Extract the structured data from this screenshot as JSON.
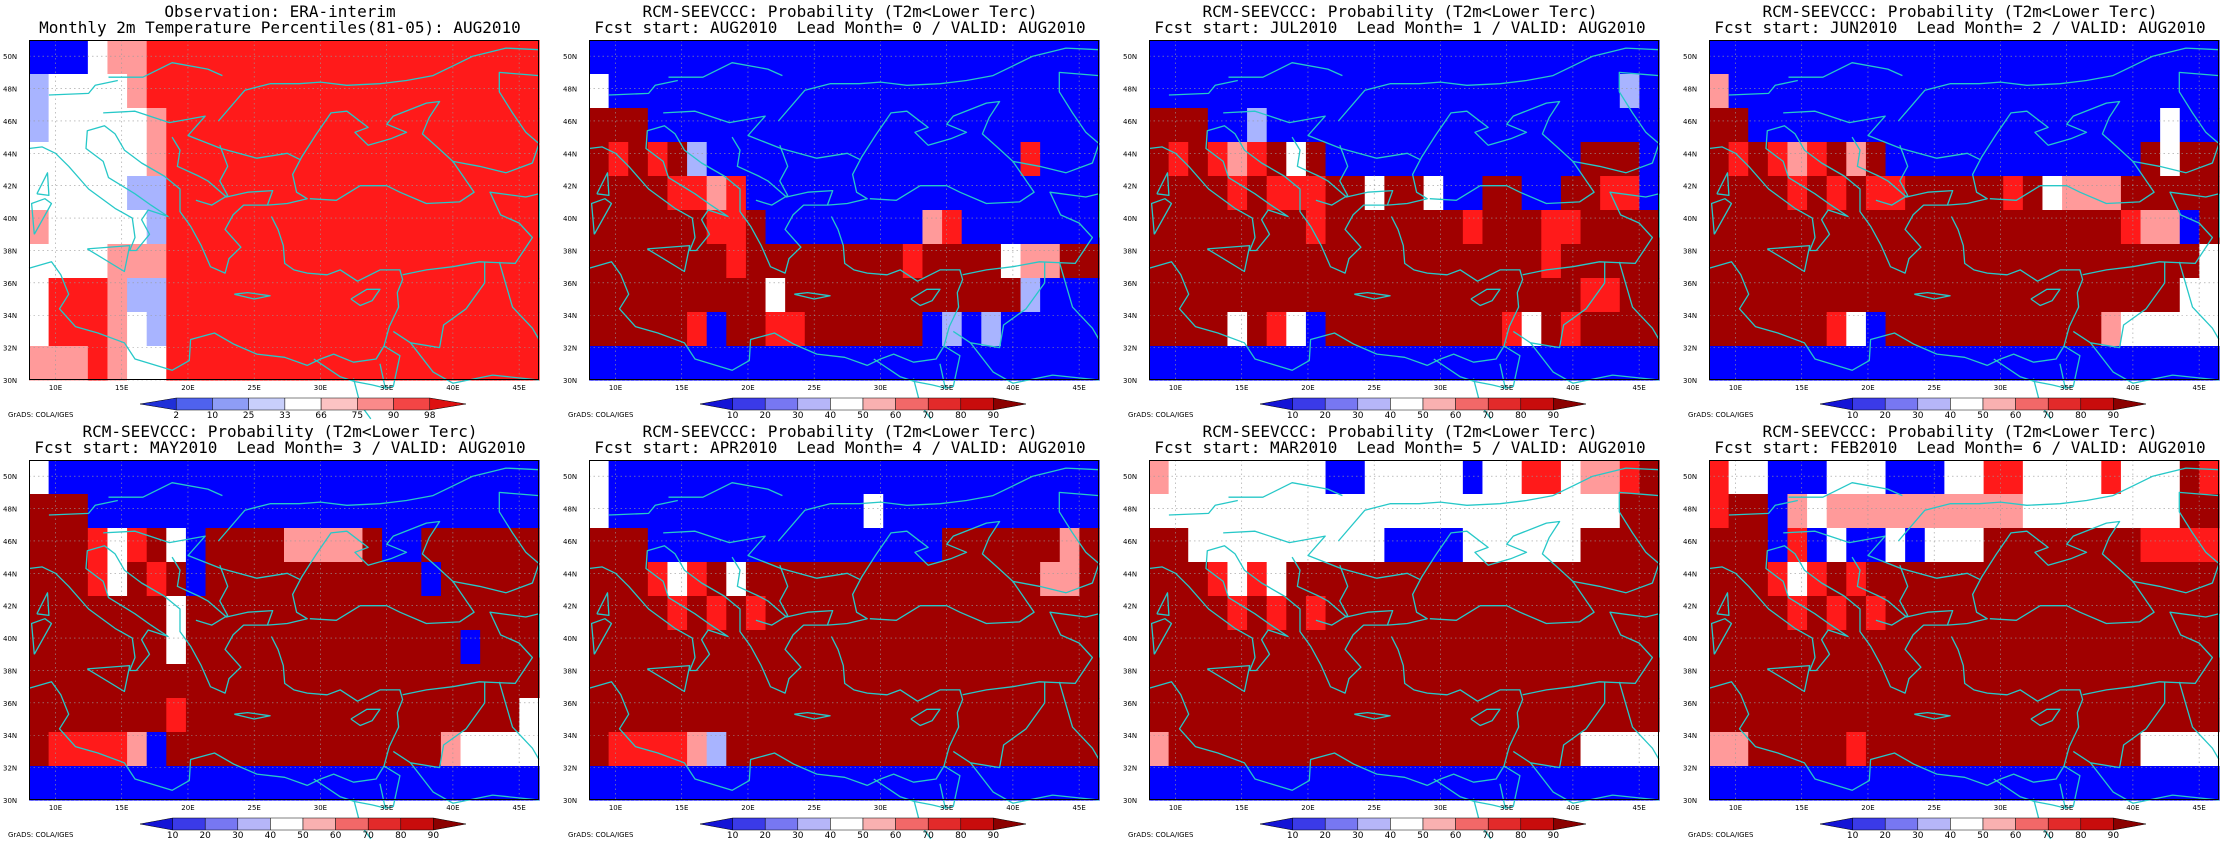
{
  "panels": [
    {
      "title1": "Observation: ERA-interim",
      "title2": "Monthly 2m Temperature Percentiles(81-05): AUG2010",
      "legend": "percentile",
      "grid": [
        "BBBWPPRRRRRRRRRRRRRRRRRRRR",
        "LWWWWPRRRRRRRRRRRRRRRRRRRR",
        "LWWWWWPRRRRRRRRRRRRRRRRRRR",
        "WWWWWWPRRRRRRRRRRRRRRRRRRR",
        "WWWWWLLRRRRRRRRRRRRRRRRRRR",
        "PWWWWWLRRRRRRRRRRRRRRRRRRR",
        "WWWWPPPRRRRRRRRRRRRRRRRRRR",
        "WRRRPLLRRRRRRRRRRRRRRRRRRR",
        "WRRRPWLRRRRRRRRRRRRRRRRRRR",
        "PPPRPWWRRRRRRRRRRRRRRRRRRR"
      ]
    },
    {
      "title1": "RCM-SEEVCCC: Probability (T2m<Lower Terc)",
      "title2": "Fcst start: AUG2010  Lead Month= 0 / VALID: AUG2010",
      "legend": "probability",
      "grid": [
        "BBBBBBBBBBBBBBBBBBBBBBBBBB",
        "WBBBBBBBBBBBBBBBBBBBBBBBBB",
        "DDDBBBBBBBBBBBBBBBBBBBBBBB",
        "DRDRDLBBBBBBBBBBBBBBBBRBBB",
        "DDDDRRPRBBBBBBBBBBBBBBBBBB",
        "DDDDDDRRDBBBBBBBBPRBBBBBBB",
        "DDDDDDDRDDDDDDDDRDDDDWPPDD",
        "DDDDDDDDDWDDDDDDDDDDDDLBBB",
        "DDDDDRBDDRRDDDDDDBLBLBBBBB",
        "BBBBBBBBBBBBBBBBBBBBBBBBBB"
      ]
    },
    {
      "title1": "RCM-SEEVCCC: Probability (T2m<Lower Terc)",
      "title2": "Fcst start: JUL2010  Lead Month= 1 / VALID: AUG2010",
      "legend": "probability",
      "grid": [
        "BBBBBBBBBBBBBBBBBBBBBBBBBB",
        "BBBBBBBBBBBBBBBBBBBBBBBBLB",
        "DDDBBLBBBBBBBBBBBBBBBBBBBB",
        "DRDRPRDWDBBBBBBBBBBBBBDDDB",
        "DDDDRDRRRDDWDDWBBDDBBDDRRB",
        "DDDDDDDDRDDDDDDDRDDDRRDDDD",
        "DDDDDDDDDDDDDDDDDDDDRDDDDD",
        "DDDDDDDDDDDDDDDDDDDDDDRRDD",
        "DDDDWDRWBDDDDDDDDDRWDRDDDD",
        "BBBBBBBBBBBBBBBBBBBBBBBBBB"
      ]
    },
    {
      "title1": "RCM-SEEVCCC: Probability (T2m<Lower Terc)",
      "title2": "Fcst start: JUN2010  Lead Month= 2 / VALID: AUG2010",
      "legend": "probability",
      "grid": [
        "BBBBBBBBBBBBBBBBBBBBBBBBBB",
        "PBBBBBBBBBBBBBBBBBBBBBBBBB",
        "DDBBBBBBBBBBBBBBBBBBBBBWBB",
        "DRDRPRDPDBBBBBBBBBBBBBDWDD",
        "DDDDRDRDRRDDDDDRDWPPPDDDDD",
        "DDDDDDDDDDDDDDDDDDDDDRPPBD",
        "DDDDDDDDDDDDDDDDDDDDDDDDDW",
        "DDDDDDDDDDDDDDDDDDDDDDDDWW",
        "DDDDDDRWBDDDDDDDDDDDPWWWWW",
        "BBBBBBBBBBBBBBBBBBBBBBBBBB"
      ]
    },
    {
      "title1": "RCM-SEEVCCC: Probability (T2m<Lower Terc)",
      "title2": "Fcst start: MAY2010  Lead Month= 3 / VALID: AUG2010",
      "legend": "probability",
      "grid": [
        "WBBBBBBBBBBBBBBBBBBBBBBBBB",
        "DDDBBBBBBBBBBBBBBBBBBBBBBB",
        "DDDRWRDWBDDDDPPPPDBBDDDDDD",
        "DDDRWDRDBDDDDDDDDDDDBDDDDD",
        "DDDDDDDWDDDDDDDDDDDDDDDDDD",
        "DDDDDDDWDDDDDDDDDDDDDDBDDD",
        "DDDDDDDDDDDDDDDDDDDDDDDDDD",
        "DDDDDDDRDDDDDDDDDDDDDDDDDW",
        "DRRRRPBDDDDDDDDDDDDDDPWWWW",
        "BBBBBBBBBBBBBBBBBBBBBBBBBB"
      ]
    },
    {
      "title1": "RCM-SEEVCCC: Probability (T2m<Lower Terc)",
      "title2": "Fcst start: APR2010  Lead Month= 4 / VALID: AUG2010",
      "legend": "probability",
      "grid": [
        "WBBBBBBBBBBBBBBBBBBBBBBBBB",
        "WBBBBBBBBBBBBBWBBBBBBBBBBB",
        "DDDBBBBBBBBBBBBBBBDDDDDDPD",
        "DDDRWRDWDDDDDDDDDDDDDDDPPD",
        "DDDDRDRDRDDDDDDDDDDDDDDDDD",
        "DDDDDDDDDDDDDDDDDDDDDDDDDD",
        "DDDDDDDDDDDDDDDDDDDDDDDDDD",
        "DDDDDDDDDDDDDDDDDDDDDDDDDD",
        "DRRRRPLDDDDDDDDDDDDDDDDDDD",
        "BBBBBBBBBBBBBBBBBBBBBBBBBB"
      ]
    },
    {
      "title1": "RCM-SEEVCCC: Probability (T2m<Lower Terc)",
      "title2": "Fcst start: MAR2010  Lead Month= 5 / VALID: AUG2010",
      "legend": "probability",
      "grid": [
        "PWWWWWWWWBBWWWWWBWWRRWPPRD",
        "WWWWWWWWWWWWWWWWWWWWWWWWDD",
        "DDWWWWWWWWWWBBBBWWWWWWDDDD",
        "DDDRWRWDDDDDDDDDDDDDDDDDDD",
        "DDDDRDRDRDDDDDDDDDDDDDDDDD",
        "DDDDDDDDDDDDDDDDDDDDDDDDDD",
        "DDDDDDDDDDDDDDDDDDDDDDDDDD",
        "DDDDDDDDDDDDDDDDDDDDDDDDDD",
        "PDDDDDDDDDDDDDDDDDDDDDWWWW",
        "BBBBBBBBBBBBBBBBBBBBBBBBBB"
      ]
    },
    {
      "title1": "RCM-SEEVCCC: Probability (T2m<Lower Terc)",
      "title2": "Fcst start: FEB2010  Lead Month= 6 / VALID: AUG2010",
      "legend": "probability",
      "grid": [
        "RWWBBBWWWBBBWWRRWWWWRWWWDR",
        "RDDBPWPPPPPPPPPPWWWWWWWWDD",
        "DDDBRBWBBWBWWWDDDDDDDDRRRR",
        "DDDRWRDRDDDDDDDDDDDDDDDDDD",
        "DDDDRDRDRDDDDDDDDDDDDDDDDD",
        "DDDDDDDDDDDDDDDDDDDDDDDDDD",
        "DDDDDDDDDDDDDDDDDDDDDDDDDD",
        "DDDDDDDDDDDDDDDDDDDDDDDDDD",
        "PPDDDDDRDDDDDDDDDDDDDDWWWW",
        "BBBBBBBBBBBBBBBBBBBBBBBBBB"
      ]
    }
  ],
  "lat_labels": [
    "50N",
    "48N",
    "46N",
    "44N",
    "42N",
    "40N",
    "38N",
    "36N",
    "34N",
    "32N",
    "30N"
  ],
  "lon_labels": [
    "10E",
    "15E",
    "20E",
    "25E",
    "30E",
    "35E",
    "40E",
    "45E"
  ],
  "colorbars": {
    "percentile": {
      "labels": [
        "2",
        "10",
        "25",
        "33",
        "66",
        "75",
        "90",
        "98"
      ],
      "colors": [
        "#2030d8",
        "#4f62ee",
        "#8e9df6",
        "#c8cffb",
        "#ffffff",
        "#fcc3c3",
        "#fa8a8a",
        "#f34545",
        "#dd1010"
      ]
    },
    "probability": {
      "labels": [
        "10",
        "20",
        "30",
        "40",
        "50",
        "60",
        "70",
        "80",
        "90"
      ],
      "colors": [
        "#1414d6",
        "#3a3ae8",
        "#7777f2",
        "#b6b6f8",
        "#ffffff",
        "#f9b0b0",
        "#f26868",
        "#e22a2a",
        "#c80c0c",
        "#8c0000"
      ]
    }
  },
  "cell_colors": {
    "B": "#0000ff",
    "L": "#a8b4ff",
    "W": "#ffffff",
    "P": "#ff9a9a",
    "R": "#ff1a1a",
    "D": "#a00000"
  },
  "grads_label": "GrADS: COLA/IGES"
}
